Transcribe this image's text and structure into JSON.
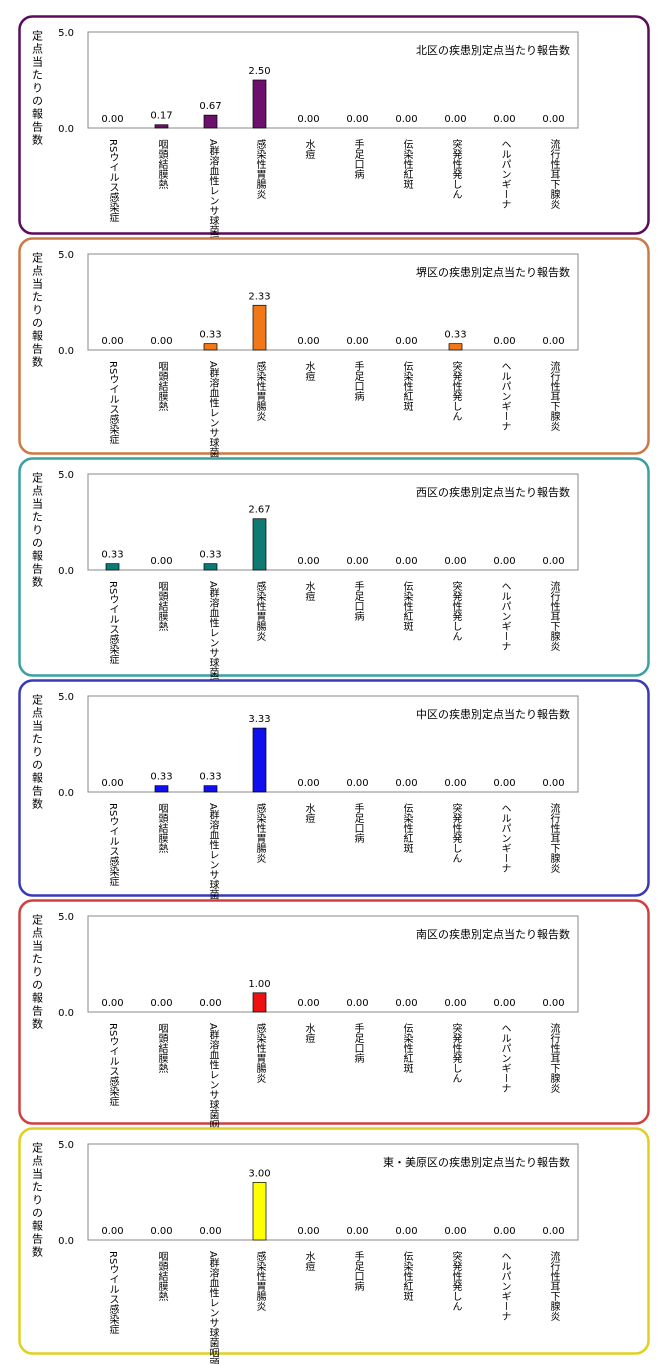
{
  "y_axis_label": "定点当たりの報告数",
  "chart_data": [
    {
      "type": "bar",
      "title": "北区の疾患別定点当たり報告数",
      "ylabel": "定点当たりの報告数",
      "ylim": [
        0,
        5.0
      ],
      "yticks": [
        "5.0",
        "0.0"
      ],
      "grid": false,
      "border_color": "#5b0c5b",
      "bar_color": "#6d0f6d",
      "categories": [
        "RSウイルス感染症",
        "咽頭結膜熱",
        "A群溶血性レンサ球菌咽頭炎",
        "感染性胃腸炎",
        "水痘",
        "手足口病",
        "伝染性紅斑",
        "突発性発しん",
        "ヘルパンギーナ",
        "流行性耳下腺炎"
      ],
      "values": [
        0.0,
        0.17,
        0.67,
        2.5,
        0.0,
        0.0,
        0.0,
        0.0,
        0.0,
        0.0
      ],
      "value_labels": [
        "0.00",
        "0.17",
        "0.67",
        "2.50",
        "0.00",
        "0.00",
        "0.00",
        "0.00",
        "0.00",
        "0.00"
      ]
    },
    {
      "type": "bar",
      "title": "堺区の疾患別定点当たり報告数",
      "ylabel": "定点当たりの報告数",
      "ylim": [
        0,
        5.0
      ],
      "yticks": [
        "5.0",
        "0.0"
      ],
      "grid": false,
      "border_color": "#cc7a45",
      "bar_color": "#f07818",
      "categories": [
        "RSウイルス感染症",
        "咽頭結膜熱",
        "A群溶血性レンサ球菌咽頭炎",
        "感染性胃腸炎",
        "水痘",
        "手足口病",
        "伝染性紅斑",
        "突発性発しん",
        "ヘルパンギーナ",
        "流行性耳下腺炎"
      ],
      "values": [
        0.0,
        0.0,
        0.33,
        2.33,
        0.0,
        0.0,
        0.0,
        0.33,
        0.0,
        0.0
      ],
      "value_labels": [
        "0.00",
        "0.00",
        "0.33",
        "2.33",
        "0.00",
        "0.00",
        "0.00",
        "0.33",
        "0.00",
        "0.00"
      ]
    },
    {
      "type": "bar",
      "title": "西区の疾患別定点当たり報告数",
      "ylabel": "定点当たりの報告数",
      "ylim": [
        0,
        5.0
      ],
      "yticks": [
        "5.0",
        "0.0"
      ],
      "grid": false,
      "border_color": "#3aa0a0",
      "bar_color": "#0d7a74",
      "categories": [
        "RSウイルス感染症",
        "咽頭結膜熱",
        "A群溶血性レンサ球菌咽頭炎",
        "感染性胃腸炎",
        "水痘",
        "手足口病",
        "伝染性紅斑",
        "突発性発しん",
        "ヘルパンギーナ",
        "流行性耳下腺炎"
      ],
      "values": [
        0.33,
        0.0,
        0.33,
        2.67,
        0.0,
        0.0,
        0.0,
        0.0,
        0.0,
        0.0
      ],
      "value_labels": [
        "0.33",
        "0.00",
        "0.33",
        "2.67",
        "0.00",
        "0.00",
        "0.00",
        "0.00",
        "0.00",
        "0.00"
      ]
    },
    {
      "type": "bar",
      "title": "中区の疾患別定点当たり報告数",
      "ylabel": "定点当たりの報告数",
      "ylim": [
        0,
        5.0
      ],
      "yticks": [
        "5.0",
        "0.0"
      ],
      "grid": false,
      "border_color": "#3a3ab8",
      "bar_color": "#1010ee",
      "categories": [
        "RSウイルス感染症",
        "咽頭結膜熱",
        "A群溶血性レンサ球菌咽頭炎",
        "感染性胃腸炎",
        "水痘",
        "手足口病",
        "伝染性紅斑",
        "突発性発しん",
        "ヘルパンギーナ",
        "流行性耳下腺炎"
      ],
      "values": [
        0.0,
        0.33,
        0.33,
        3.33,
        0.0,
        0.0,
        0.0,
        0.0,
        0.0,
        0.0
      ],
      "value_labels": [
        "0.00",
        "0.33",
        "0.33",
        "3.33",
        "0.00",
        "0.00",
        "0.00",
        "0.00",
        "0.00",
        "0.00"
      ]
    },
    {
      "type": "bar",
      "title": "南区の疾患別定点当たり報告数",
      "ylabel": "定点当たりの報告数",
      "ylim": [
        0,
        5.0
      ],
      "yticks": [
        "5.0",
        "0.0"
      ],
      "grid": false,
      "border_color": "#d04040",
      "bar_color": "#ee1111",
      "categories": [
        "RSウイルス感染症",
        "咽頭結膜熱",
        "A群溶血性レンサ球菌咽頭炎",
        "感染性胃腸炎",
        "水痘",
        "手足口病",
        "伝染性紅斑",
        "突発性発しん",
        "ヘルパンギーナ",
        "流行性耳下腺炎"
      ],
      "values": [
        0.0,
        0.0,
        0.0,
        1.0,
        0.0,
        0.0,
        0.0,
        0.0,
        0.0,
        0.0
      ],
      "value_labels": [
        "0.00",
        "0.00",
        "0.00",
        "1.00",
        "0.00",
        "0.00",
        "0.00",
        "0.00",
        "0.00",
        "0.00"
      ]
    },
    {
      "type": "bar",
      "title": "東・美原区の疾患別定点当たり報告数",
      "ylabel": "定点当たりの報告数",
      "ylim": [
        0,
        5.0
      ],
      "yticks": [
        "5.0",
        "0.0"
      ],
      "grid": false,
      "border_color": "#e0d020",
      "bar_color": "#ffff00",
      "categories": [
        "RSウイルス感染症",
        "咽頭結膜熱",
        "A群溶血性レンサ球菌咽頭炎",
        "感染性胃腸炎",
        "水痘",
        "手足口病",
        "伝染性紅斑",
        "突発性発しん",
        "ヘルパンギーナ",
        "流行性耳下腺炎"
      ],
      "values": [
        0.0,
        0.0,
        0.0,
        3.0,
        0.0,
        0.0,
        0.0,
        0.0,
        0.0,
        0.0
      ],
      "value_labels": [
        "0.00",
        "0.00",
        "0.00",
        "3.00",
        "0.00",
        "0.00",
        "0.00",
        "0.00",
        "0.00",
        "0.00"
      ]
    }
  ]
}
